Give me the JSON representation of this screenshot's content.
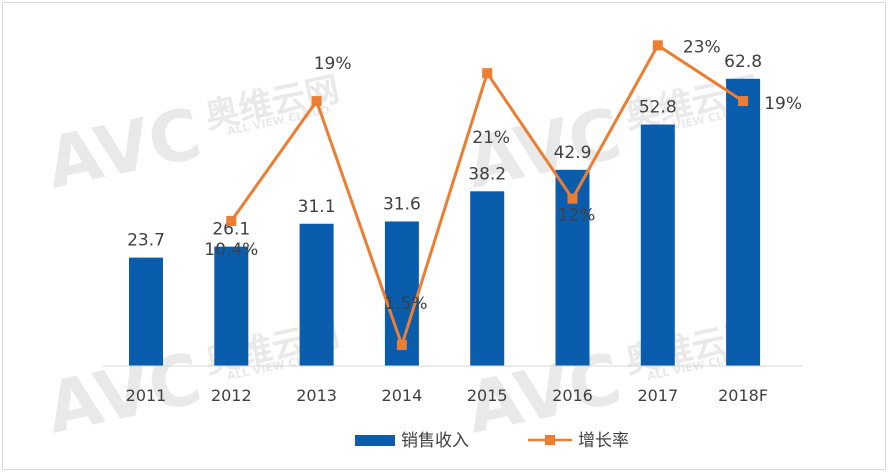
{
  "watermark": {
    "brand": "AVC",
    "cn": "奥维云网",
    "en": "ALL VIEW CLOUD"
  },
  "chart_data": {
    "type": "bar",
    "categories": [
      "2011",
      "2012",
      "2013",
      "2014",
      "2015",
      "2016",
      "2017",
      "2018F"
    ],
    "series": [
      {
        "name": "销售收入",
        "type": "bar",
        "values": [
          23.7,
          26.1,
          31.1,
          31.6,
          38.2,
          42.9,
          52.8,
          62.8
        ],
        "labels": [
          "23.7",
          "26.1",
          "31.1",
          "31.6",
          "38.2",
          "42.9",
          "52.8",
          "62.8"
        ],
        "color": "#0a5cad"
      },
      {
        "name": "增长率",
        "type": "line",
        "values": [
          null,
          10.4,
          19,
          1.5,
          21,
          12,
          23,
          19
        ],
        "labels": [
          "",
          "10.4%",
          "19%",
          "1.5%",
          "21%",
          "12%",
          "23%",
          "19%"
        ],
        "color": "#ed7d31"
      }
    ],
    "title": "",
    "xlabel": "",
    "ylabel": "",
    "ylim": [
      0,
      75
    ],
    "y2lim": [
      0,
      24.6
    ],
    "grid": false,
    "legend": "bottom"
  }
}
